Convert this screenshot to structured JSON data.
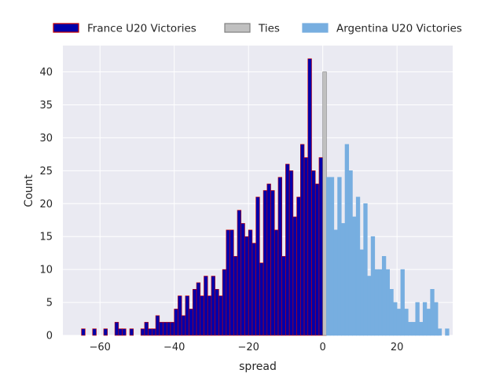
{
  "chart_data": {
    "type": "bar",
    "xlabel": "spread",
    "ylabel": "Count",
    "xlim": [
      -70,
      35
    ],
    "ylim": [
      0,
      44
    ],
    "xticks": [
      -60,
      -40,
      -20,
      0,
      20
    ],
    "yticks": [
      0,
      5,
      10,
      15,
      20,
      25,
      30,
      35,
      40
    ],
    "xtick_labels": [
      "−60",
      "−40",
      "−20",
      "0",
      "20"
    ],
    "ytick_labels": [
      "0",
      "5",
      "10",
      "15",
      "20",
      "25",
      "30",
      "35",
      "40"
    ],
    "grid": true,
    "legend_position": "top",
    "bin_width": 1,
    "series": [
      {
        "name": "France U20 Victories",
        "color": "#0000aa",
        "edge_color": "#cc0000",
        "bins": [
          [
            -65,
            1
          ],
          [
            -62,
            1
          ],
          [
            -59,
            1
          ],
          [
            -56,
            2
          ],
          [
            -55,
            1
          ],
          [
            -54,
            1
          ],
          [
            -52,
            1
          ],
          [
            -49,
            1
          ],
          [
            -48,
            2
          ],
          [
            -47,
            1
          ],
          [
            -46,
            1
          ],
          [
            -45,
            3
          ],
          [
            -44,
            2
          ],
          [
            -43,
            2
          ],
          [
            -42,
            2
          ],
          [
            -41,
            2
          ],
          [
            -40,
            4
          ],
          [
            -39,
            6
          ],
          [
            -38,
            3
          ],
          [
            -37,
            6
          ],
          [
            -36,
            4
          ],
          [
            -35,
            7
          ],
          [
            -34,
            8
          ],
          [
            -33,
            6
          ],
          [
            -32,
            9
          ],
          [
            -31,
            6
          ],
          [
            -30,
            9
          ],
          [
            -29,
            7
          ],
          [
            -28,
            6
          ],
          [
            -27,
            10
          ],
          [
            -26,
            16
          ],
          [
            -25,
            16
          ],
          [
            -24,
            12
          ],
          [
            -23,
            19
          ],
          [
            -22,
            17
          ],
          [
            -21,
            15
          ],
          [
            -20,
            16
          ],
          [
            -19,
            14
          ],
          [
            -18,
            21
          ],
          [
            -17,
            11
          ],
          [
            -16,
            22
          ],
          [
            -15,
            23
          ],
          [
            -14,
            22
          ],
          [
            -13,
            16
          ],
          [
            -12,
            24
          ],
          [
            -11,
            12
          ],
          [
            -10,
            26
          ],
          [
            -9,
            25
          ],
          [
            -8,
            18
          ],
          [
            -7,
            21
          ],
          [
            -6,
            29
          ],
          [
            -5,
            27
          ],
          [
            -4,
            42
          ],
          [
            -3,
            25
          ],
          [
            -2,
            23
          ],
          [
            -1,
            27
          ],
          [
            0,
            22
          ]
        ]
      },
      {
        "name": "Ties",
        "color": "#c0c0c0",
        "edge_color": "#808080",
        "bins": [
          [
            0,
            40
          ]
        ]
      },
      {
        "name": "Argentina U20 Victories",
        "color": "#77aee0",
        "edge_color": "#77aee0",
        "bins": [
          [
            1,
            24
          ],
          [
            2,
            24
          ],
          [
            3,
            16
          ],
          [
            4,
            24
          ],
          [
            5,
            17
          ],
          [
            6,
            29
          ],
          [
            7,
            25
          ],
          [
            8,
            18
          ],
          [
            9,
            21
          ],
          [
            10,
            13
          ],
          [
            11,
            20
          ],
          [
            12,
            9
          ],
          [
            13,
            15
          ],
          [
            14,
            10
          ],
          [
            15,
            10
          ],
          [
            16,
            12
          ],
          [
            17,
            10
          ],
          [
            18,
            7
          ],
          [
            19,
            5
          ],
          [
            20,
            4
          ],
          [
            21,
            10
          ],
          [
            22,
            4
          ],
          [
            23,
            2
          ],
          [
            24,
            2
          ],
          [
            25,
            5
          ],
          [
            26,
            2
          ],
          [
            27,
            5
          ],
          [
            28,
            4
          ],
          [
            29,
            7
          ],
          [
            30,
            5
          ],
          [
            31,
            1
          ],
          [
            33,
            1
          ]
        ]
      }
    ]
  }
}
